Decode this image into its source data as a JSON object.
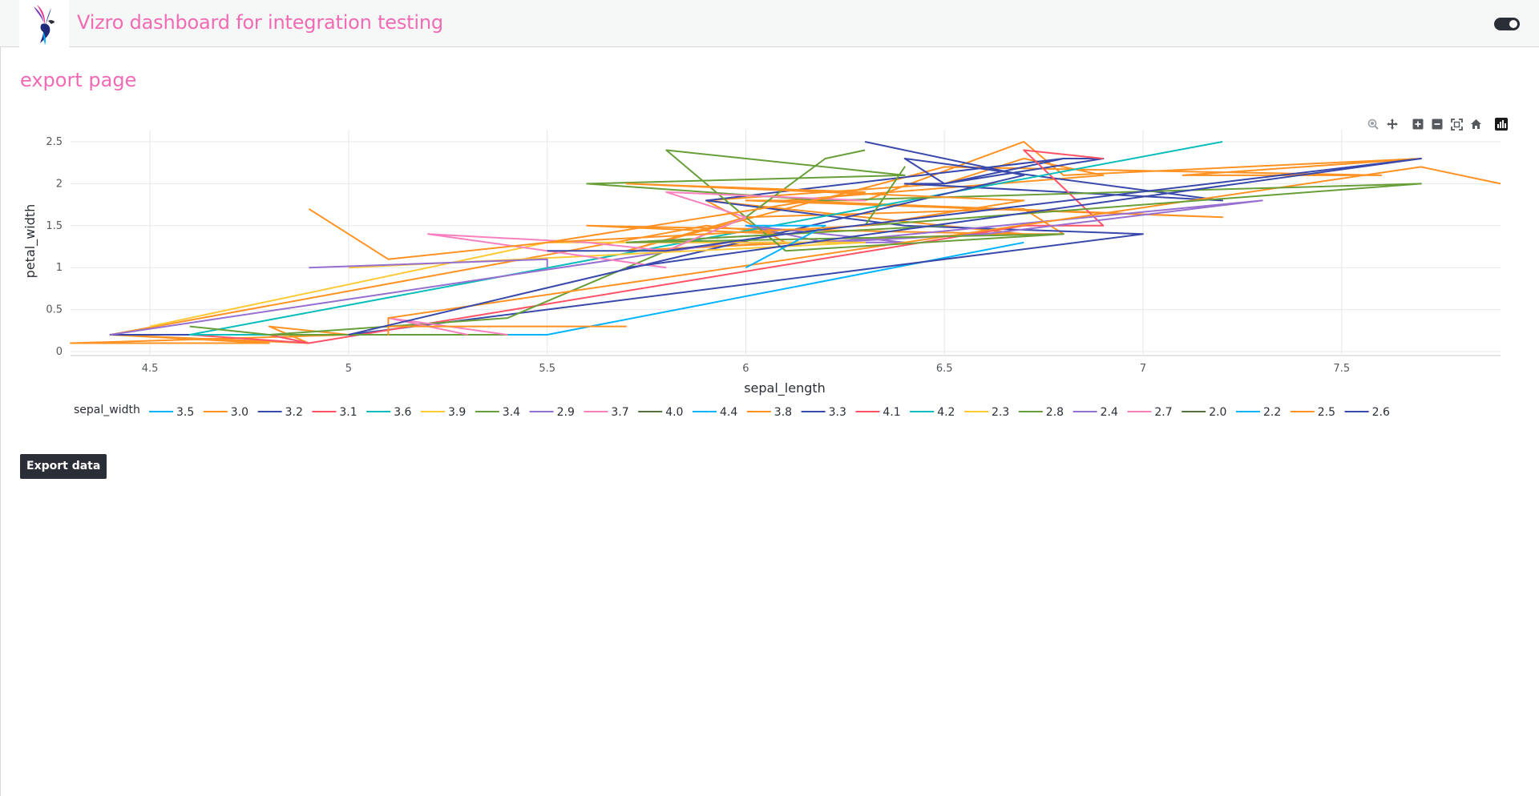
{
  "header": {
    "title": "Vizro dashboard for integration testing"
  },
  "page": {
    "title": "export page"
  },
  "modebar": [
    "zoom-icon",
    "pan-icon",
    "zoom-in-icon",
    "zoom-out-icon",
    "autoscale-icon",
    "reset-axes-icon",
    "plotly-logo-icon"
  ],
  "export_button": {
    "label": "Export data"
  },
  "colors": {
    "accent": "#f06bb4",
    "palette": [
      "#00b4ff",
      "#ff9222",
      "#3949ab",
      "#ff5267",
      "#08bdba",
      "#fdc935",
      "#689f38",
      "#976fd1",
      "#f781bf",
      "#52733e"
    ]
  },
  "chart_data": {
    "type": "line",
    "xlabel": "sepal_length",
    "ylabel": "petal_width",
    "legend_title": "sepal_width",
    "legend_position": "bottom",
    "grid": true,
    "xlim": [
      4.3,
      7.9
    ],
    "ylim": [
      0,
      2.5
    ],
    "xticks": [
      "4.5",
      "5",
      "5.5",
      "6",
      "6.5",
      "7",
      "7.5"
    ],
    "yticks": [
      "0",
      "0.5",
      "1",
      "1.5",
      "2",
      "2.5"
    ],
    "series": [
      {
        "name": "3.5",
        "x": [
          5.1,
          5,
          5.2,
          5.1,
          5.5,
          6.7
        ],
        "y": [
          0.2,
          0.2,
          0.2,
          0.2,
          0.2,
          1.3
        ]
      },
      {
        "name": "3.0",
        "x": [
          4.9,
          4.4,
          4.8,
          4.3,
          5,
          4.8,
          4.9,
          4.4,
          5.9,
          6.1,
          5.6,
          6.7,
          5.9,
          6.1,
          5.7,
          6.6,
          6.8,
          6.7,
          6,
          5.7,
          6.5,
          7.6,
          7.1,
          7.7,
          6.8,
          6.7,
          6.3,
          6,
          7.2,
          6.1,
          6.9,
          6.7,
          6.5,
          5.9
        ],
        "y": [
          0.2,
          0.2,
          0.1,
          0.1,
          0.2,
          0.3,
          0.1,
          0.2,
          1.5,
          1.4,
          1.5,
          1.4,
          1.8,
          1.3,
          1.2,
          1.4,
          1.4,
          1.7,
          1.6,
          1.2,
          2.2,
          2.1,
          2.1,
          2.3,
          2.1,
          2.5,
          1.8,
          1.8,
          1.6,
          1.8,
          2.1,
          2.3,
          2,
          1.8
        ]
      },
      {
        "name": "3.2",
        "x": [
          4.7,
          4.6,
          5,
          4.4,
          5,
          7,
          6.4,
          5.9,
          6.8,
          6.5,
          6.4,
          7.2,
          6.4,
          6.5,
          6.9,
          6.8
        ],
        "y": [
          0.2,
          0.2,
          0.2,
          0.2,
          0.2,
          1.4,
          1.5,
          1.8,
          2.3,
          2,
          2.3,
          1.8,
          2,
          2,
          2.3,
          2.3
        ]
      },
      {
        "name": "3.1",
        "x": [
          4.6,
          4.9,
          4.8,
          4.9,
          6.7,
          6.9,
          6.7,
          6.9
        ],
        "y": [
          0.2,
          0.1,
          0.2,
          0.1,
          1.5,
          1.5,
          2.4,
          2.3
        ]
      },
      {
        "name": "3.6",
        "x": [
          5,
          4.6,
          7.2
        ],
        "y": [
          0.2,
          0.2,
          2.5
        ]
      },
      {
        "name": "3.9",
        "x": [
          5.4,
          5.4
        ],
        "y": [
          0.4,
          0.4
        ]
      },
      {
        "name": "3.4",
        "x": [
          4.6,
          4.8,
          5,
          5.4,
          5.2,
          5.1,
          4.8,
          5.4,
          6.0,
          6.2,
          6.3
        ],
        "y": [
          0.3,
          0.2,
          0.2,
          0.2,
          0.2,
          0.2,
          0.2,
          0.4,
          1.6,
          2.3,
          2.4
        ]
      },
      {
        "name": "2.9",
        "x": [
          4.4,
          6.1,
          5.7,
          6.4,
          6.0,
          6.2,
          6.6,
          7.3,
          6.2
        ],
        "y": [
          0.2,
          1.4,
          1.3,
          1.3,
          1.5,
          1.3,
          1.4,
          1.8,
          1.3
        ]
      },
      {
        "name": "3.7",
        "x": [
          5.4,
          5.1,
          5.3
        ],
        "y": [
          0.2,
          0.4,
          0.2
        ]
      },
      {
        "name": "4.0",
        "x": [
          5.8
        ],
        "y": [
          0.2
        ]
      },
      {
        "name": "4.4",
        "x": [
          5.7
        ],
        "y": [
          0.4
        ]
      },
      {
        "name": "3.8",
        "x": [
          5.7,
          5.1,
          5.1,
          5.1,
          7.7,
          7.9
        ],
        "y": [
          0.3,
          0.3,
          0.2,
          0.4,
          2.2,
          2.0
        ]
      },
      {
        "name": "3.3",
        "x": [
          5.0,
          6.7,
          6.3
        ],
        "y": [
          0.2,
          2.1,
          2.5
        ]
      },
      {
        "name": "4.1",
        "x": [
          5.2
        ],
        "y": [
          0.1
        ]
      },
      {
        "name": "4.2",
        "x": [
          5.5
        ],
        "y": [
          0.2
        ]
      },
      {
        "name": "2.3",
        "x": [
          4.5,
          5.5,
          6.3,
          5.0
        ],
        "y": [
          0.3,
          1.3,
          1.3,
          1.0
        ]
      },
      {
        "name": "2.8",
        "x": [
          6.5,
          5.7,
          6.8,
          6.1,
          5.8,
          6.4,
          5.6,
          6.2,
          7.7,
          6.3,
          6.4,
          6.3
        ],
        "y": [
          1.5,
          1.3,
          1.4,
          1.2,
          2.4,
          2.1,
          2.0,
          1.8,
          2.0,
          1.5,
          2.2,
          1.5
        ]
      },
      {
        "name": "2.4",
        "x": [
          4.9,
          5.5,
          5.5
        ],
        "y": [
          1.0,
          1.1,
          1.0
        ]
      },
      {
        "name": "2.7",
        "x": [
          5.8,
          5.2,
          5.6,
          5.8,
          6.0,
          5.8,
          6.3,
          5.8
        ],
        "y": [
          1.0,
          1.4,
          1.3,
          1.2,
          1.6,
          1.9,
          1.8,
          1.9
        ]
      },
      {
        "name": "2.0",
        "x": [
          5.0
        ],
        "y": [
          1.0
        ]
      },
      {
        "name": "2.2",
        "x": [
          6.0,
          6.2,
          6.0
        ],
        "y": [
          1.0,
          1.5,
          1.5
        ]
      },
      {
        "name": "2.5",
        "x": [
          4.9,
          5.1,
          5.5,
          6.3,
          6.7,
          5.7,
          6.3,
          5.5
        ],
        "y": [
          1.7,
          1.1,
          1.3,
          1.5,
          1.8,
          2.0,
          1.9,
          1.3
        ]
      },
      {
        "name": "2.6",
        "x": [
          5.5,
          5.8,
          6.1,
          7.7,
          5.7
        ],
        "y": [
          1.2,
          1.2,
          1.4,
          2.3,
          1.0
        ]
      }
    ]
  }
}
